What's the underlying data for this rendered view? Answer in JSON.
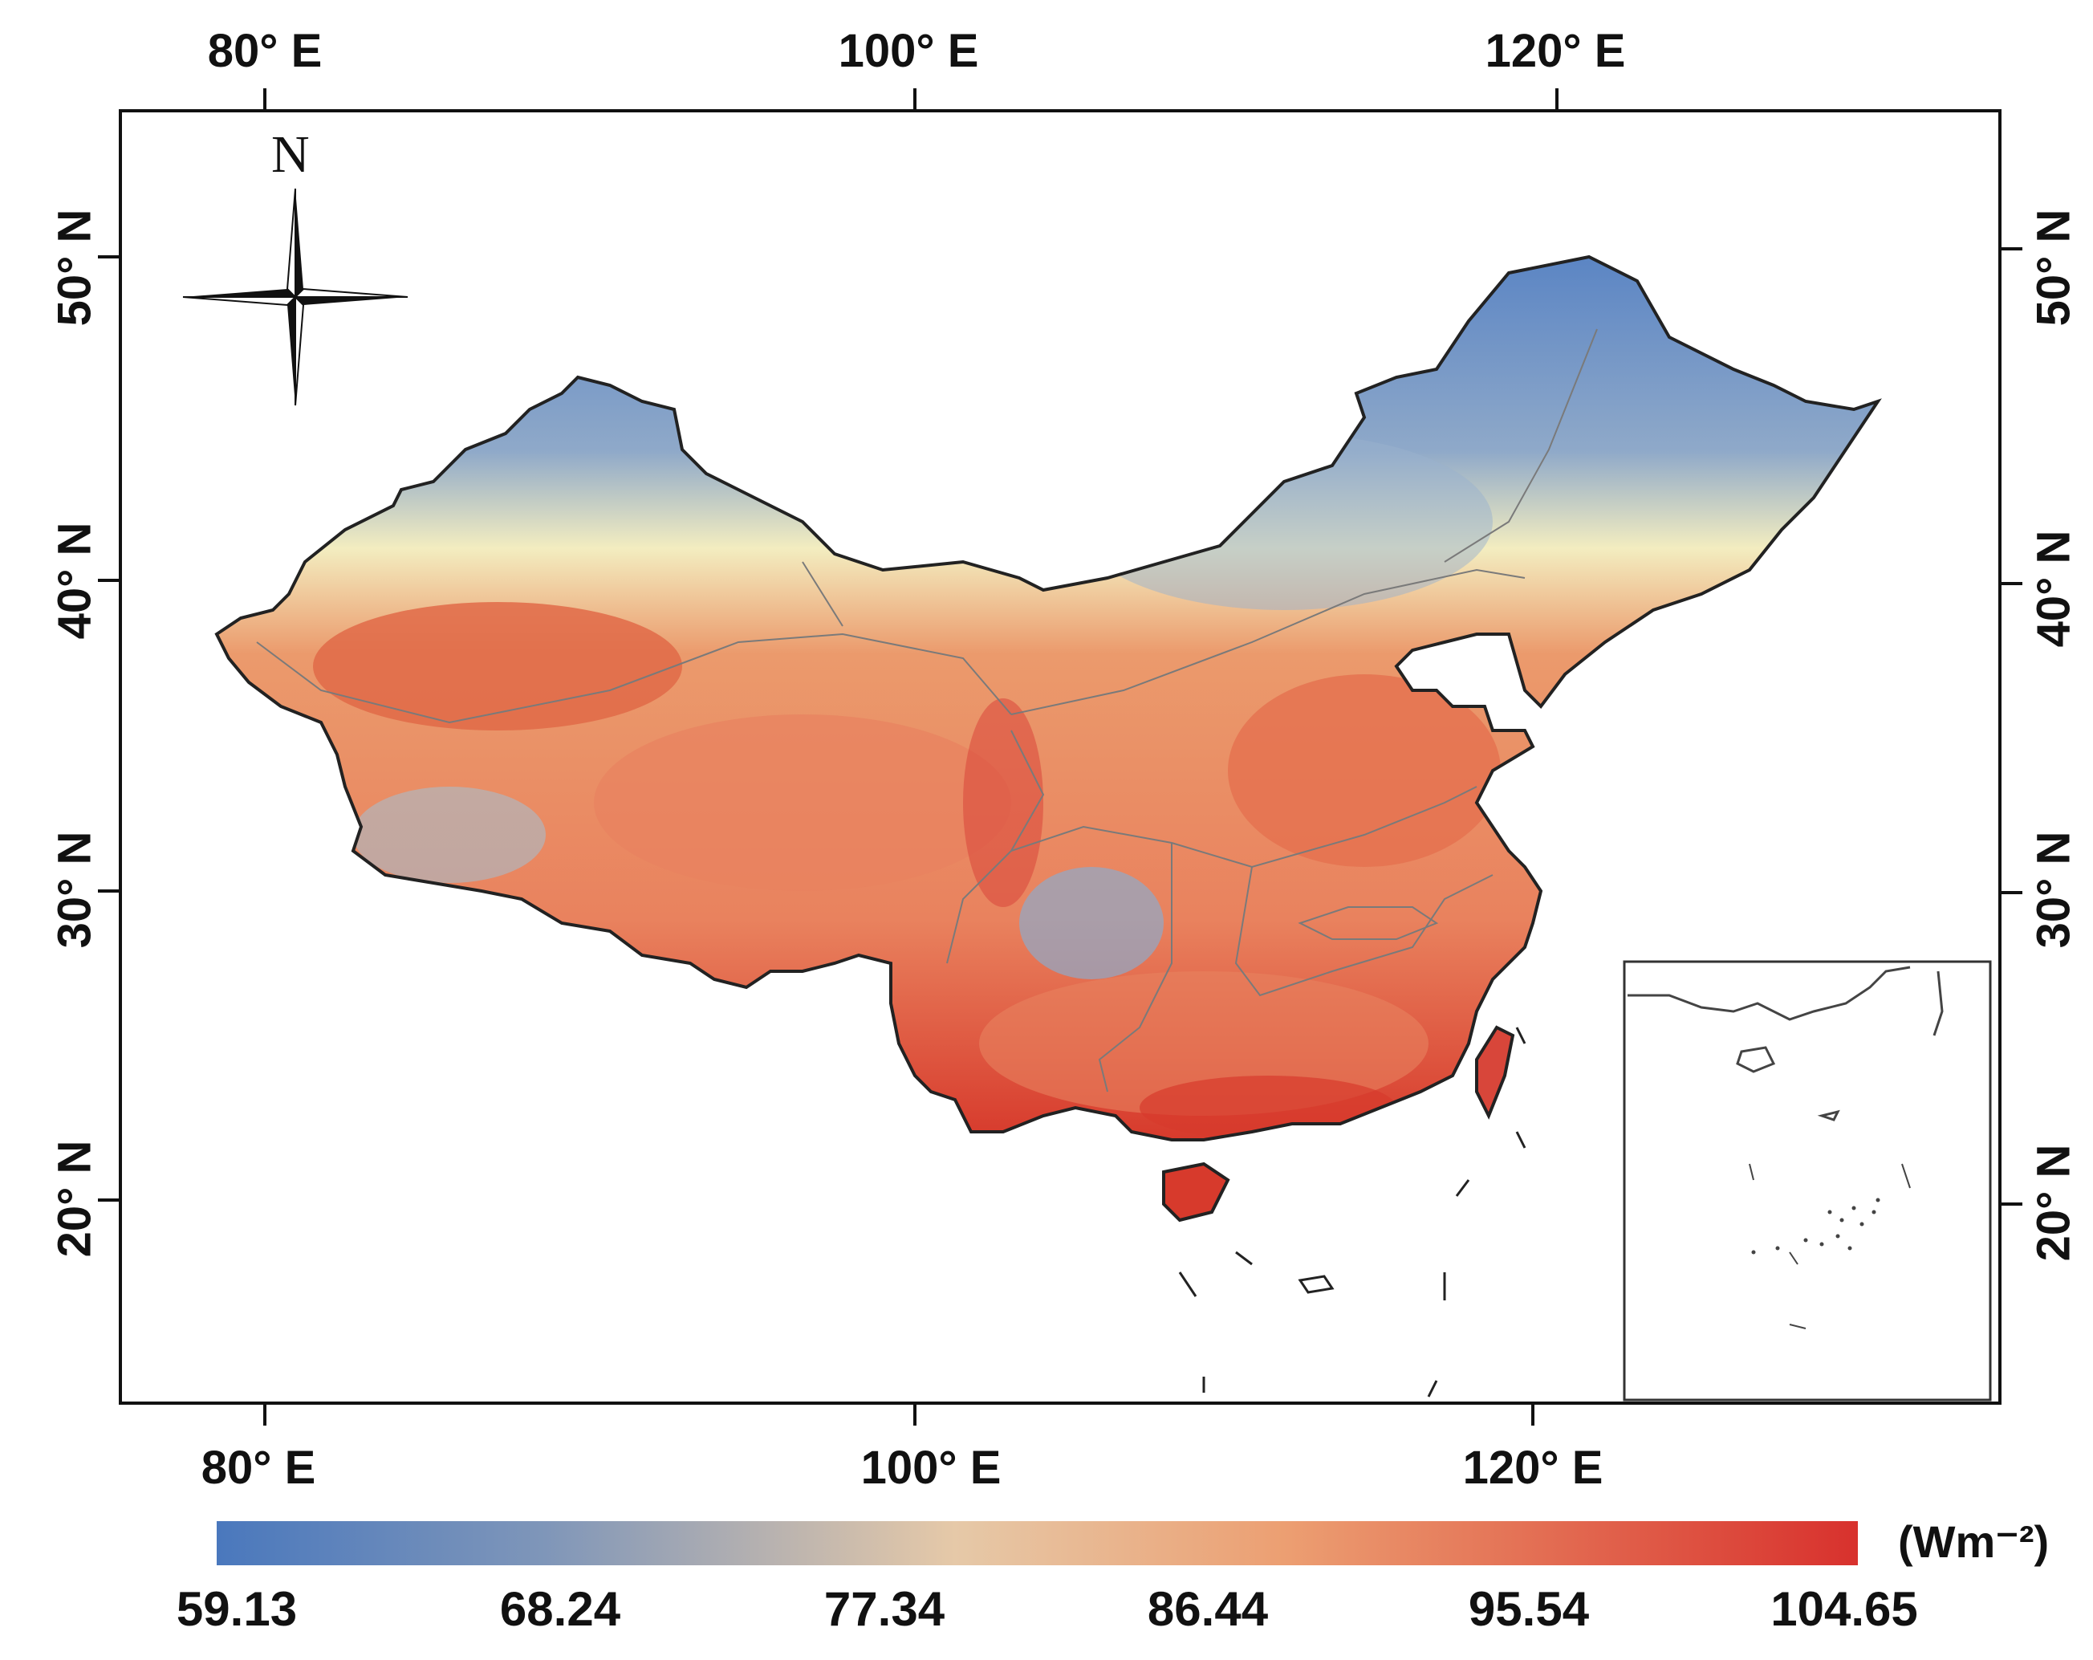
{
  "map": {
    "longitude_labels_top": [
      "80° E",
      "100° E",
      "120° E"
    ],
    "longitude_labels_bottom": [
      "80° E",
      "100° E",
      "120° E"
    ],
    "latitude_labels_left": [
      "50° N",
      "40° N",
      "30° N",
      "20° N"
    ],
    "latitude_labels_right": [
      "50° N",
      "40° N",
      "30° N",
      "20° N"
    ],
    "compass_label": "N",
    "colorbar": {
      "ticks": [
        "59.13",
        "68.24",
        "77.34",
        "86.44",
        "95.54",
        "104.65"
      ],
      "unit": "(Wm⁻²)",
      "low_color": "#4a78bd",
      "mid_color": "#e6c9a8",
      "high_color": "#d8312d"
    },
    "value_range": [
      59.13,
      104.65
    ]
  }
}
